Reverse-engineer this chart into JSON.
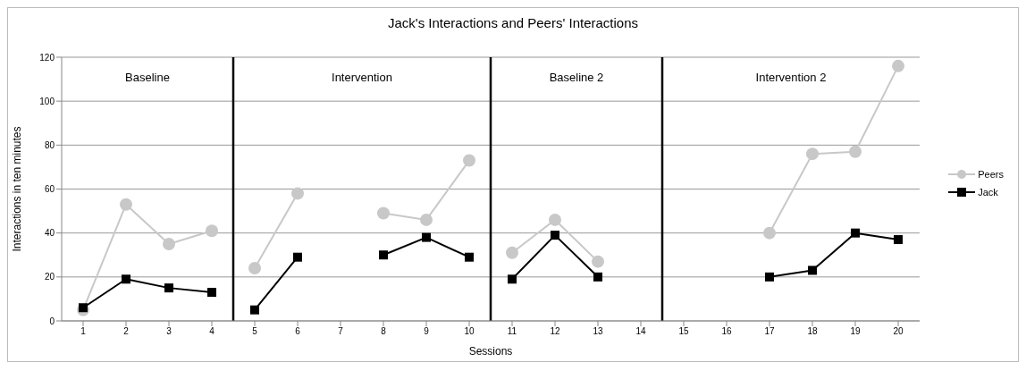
{
  "chart_data": {
    "type": "line",
    "title": "Jack's Interactions and Peers' Interactions",
    "xlabel": "Sessions",
    "ylabel": "Interactions in ten minutes",
    "x": [
      1,
      2,
      3,
      4,
      5,
      6,
      7,
      8,
      9,
      10,
      11,
      12,
      13,
      14,
      15,
      16,
      17,
      18,
      19,
      20
    ],
    "series": [
      {
        "name": "Peers",
        "color": "#c8c8c8",
        "marker": "circle",
        "values": [
          5,
          53,
          35,
          41,
          24,
          58,
          null,
          49,
          46,
          73,
          31,
          46,
          27,
          null,
          null,
          null,
          40,
          76,
          77,
          116
        ]
      },
      {
        "name": "Jack",
        "color": "#000000",
        "marker": "square",
        "values": [
          6,
          19,
          15,
          13,
          5,
          29,
          null,
          30,
          38,
          29,
          19,
          39,
          20,
          null,
          null,
          null,
          20,
          23,
          40,
          37
        ]
      }
    ],
    "xlim": [
      0.5,
      20.5
    ],
    "xticks": [
      1,
      2,
      3,
      4,
      5,
      6,
      7,
      8,
      9,
      10,
      11,
      12,
      13,
      14,
      15,
      16,
      17,
      18,
      19,
      20
    ],
    "ylim": [
      0,
      120
    ],
    "yticks": [
      0,
      20,
      40,
      60,
      80,
      100,
      120
    ],
    "ref_lines": [
      {
        "axis": "x",
        "value": 4.5,
        "color": "#000000"
      },
      {
        "axis": "x",
        "value": 10.5,
        "color": "#000000"
      },
      {
        "axis": "x",
        "value": 14.5,
        "color": "#000000"
      }
    ],
    "annotations": [
      "Baseline",
      "Intervention",
      "Baseline 2",
      "Intervention 2"
    ],
    "grid": "y",
    "legend": "right",
    "line_style": "solid"
  }
}
